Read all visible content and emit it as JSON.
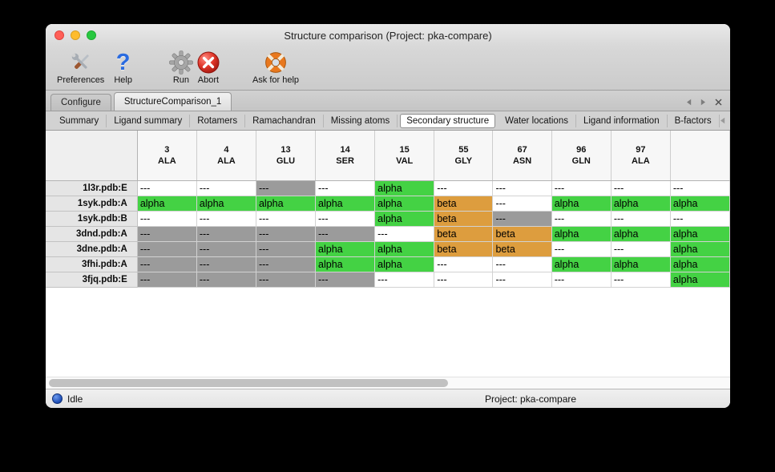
{
  "window": {
    "title": "Structure comparison (Project: pka-compare)"
  },
  "toolbar": {
    "items": [
      {
        "label": "Preferences",
        "icon": "tools-icon"
      },
      {
        "label": "Help",
        "icon": "help-question-icon",
        "glyph": "?"
      },
      {
        "label": "Run",
        "icon": "gear-icon"
      },
      {
        "label": "Abort",
        "icon": "abort-icon"
      },
      {
        "label": "Ask for help",
        "icon": "lifebuoy-icon"
      }
    ]
  },
  "document_tabs": {
    "items": [
      {
        "label": "Configure",
        "selected": false
      },
      {
        "label": "StructureComparison_1",
        "selected": true
      }
    ]
  },
  "view_tabs": {
    "items": [
      {
        "label": "Summary",
        "selected": false
      },
      {
        "label": "Ligand summary",
        "selected": false
      },
      {
        "label": "Rotamers",
        "selected": false
      },
      {
        "label": "Ramachandran",
        "selected": false
      },
      {
        "label": "Missing atoms",
        "selected": false
      },
      {
        "label": "Secondary structure",
        "selected": true
      },
      {
        "label": "Water locations",
        "selected": false
      },
      {
        "label": "Ligand information",
        "selected": false
      },
      {
        "label": "B-factors",
        "selected": false
      }
    ]
  },
  "table": {
    "columns": [
      {
        "number": "3",
        "residue": "ALA"
      },
      {
        "number": "4",
        "residue": "ALA"
      },
      {
        "number": "13",
        "residue": "GLU"
      },
      {
        "number": "14",
        "residue": "SER"
      },
      {
        "number": "15",
        "residue": "VAL"
      },
      {
        "number": "55",
        "residue": "GLY"
      },
      {
        "number": "67",
        "residue": "ASN"
      },
      {
        "number": "96",
        "residue": "GLN"
      },
      {
        "number": "97",
        "residue": "ALA"
      },
      {
        "number": "",
        "residue": ""
      }
    ],
    "rows": [
      {
        "label": "1l3r.pdb:E",
        "cells": [
          {
            "text": "---",
            "style": "white"
          },
          {
            "text": "---",
            "style": "white"
          },
          {
            "text": "---",
            "style": "gray"
          },
          {
            "text": "---",
            "style": "white"
          },
          {
            "text": "alpha",
            "style": "alpha"
          },
          {
            "text": "---",
            "style": "white"
          },
          {
            "text": "---",
            "style": "white"
          },
          {
            "text": "---",
            "style": "white"
          },
          {
            "text": "---",
            "style": "white"
          },
          {
            "text": "---",
            "style": "white"
          }
        ]
      },
      {
        "label": "1syk.pdb:A",
        "cells": [
          {
            "text": "alpha",
            "style": "alpha"
          },
          {
            "text": "alpha",
            "style": "alpha"
          },
          {
            "text": "alpha",
            "style": "alpha"
          },
          {
            "text": "alpha",
            "style": "alpha"
          },
          {
            "text": "alpha",
            "style": "alpha"
          },
          {
            "text": "beta",
            "style": "beta"
          },
          {
            "text": "---",
            "style": "white"
          },
          {
            "text": "alpha",
            "style": "alpha"
          },
          {
            "text": "alpha",
            "style": "alpha"
          },
          {
            "text": "alpha",
            "style": "alpha"
          }
        ]
      },
      {
        "label": "1syk.pdb:B",
        "cells": [
          {
            "text": "---",
            "style": "white"
          },
          {
            "text": "---",
            "style": "white"
          },
          {
            "text": "---",
            "style": "white"
          },
          {
            "text": "---",
            "style": "white"
          },
          {
            "text": "alpha",
            "style": "alpha"
          },
          {
            "text": "beta",
            "style": "beta"
          },
          {
            "text": "---",
            "style": "gray"
          },
          {
            "text": "---",
            "style": "white"
          },
          {
            "text": "---",
            "style": "white"
          },
          {
            "text": "---",
            "style": "white"
          }
        ]
      },
      {
        "label": "3dnd.pdb:A",
        "cells": [
          {
            "text": "---",
            "style": "gray"
          },
          {
            "text": "---",
            "style": "gray"
          },
          {
            "text": "---",
            "style": "gray"
          },
          {
            "text": "---",
            "style": "gray"
          },
          {
            "text": "---",
            "style": "white"
          },
          {
            "text": "beta",
            "style": "beta"
          },
          {
            "text": "beta",
            "style": "beta"
          },
          {
            "text": "alpha",
            "style": "alpha"
          },
          {
            "text": "alpha",
            "style": "alpha"
          },
          {
            "text": "alpha",
            "style": "alpha"
          }
        ]
      },
      {
        "label": "3dne.pdb:A",
        "cells": [
          {
            "text": "---",
            "style": "gray"
          },
          {
            "text": "---",
            "style": "gray"
          },
          {
            "text": "---",
            "style": "gray"
          },
          {
            "text": "alpha",
            "style": "alpha"
          },
          {
            "text": "alpha",
            "style": "alpha"
          },
          {
            "text": "beta",
            "style": "beta"
          },
          {
            "text": "beta",
            "style": "beta"
          },
          {
            "text": "---",
            "style": "white"
          },
          {
            "text": "---",
            "style": "white"
          },
          {
            "text": "alpha",
            "style": "alpha"
          }
        ]
      },
      {
        "label": "3fhi.pdb:A",
        "cells": [
          {
            "text": "---",
            "style": "gray"
          },
          {
            "text": "---",
            "style": "gray"
          },
          {
            "text": "---",
            "style": "gray"
          },
          {
            "text": "alpha",
            "style": "alpha"
          },
          {
            "text": "alpha",
            "style": "alpha"
          },
          {
            "text": "---",
            "style": "white"
          },
          {
            "text": "---",
            "style": "white"
          },
          {
            "text": "alpha",
            "style": "alpha"
          },
          {
            "text": "alpha",
            "style": "alpha"
          },
          {
            "text": "alpha",
            "style": "alpha"
          }
        ]
      },
      {
        "label": "3fjq.pdb:E",
        "cells": [
          {
            "text": "---",
            "style": "gray"
          },
          {
            "text": "---",
            "style": "gray"
          },
          {
            "text": "---",
            "style": "gray"
          },
          {
            "text": "---",
            "style": "gray"
          },
          {
            "text": "---",
            "style": "white"
          },
          {
            "text": "---",
            "style": "white"
          },
          {
            "text": "---",
            "style": "white"
          },
          {
            "text": "---",
            "style": "white"
          },
          {
            "text": "---",
            "style": "white"
          },
          {
            "text": "alpha",
            "style": "alpha"
          }
        ]
      }
    ]
  },
  "colors": {
    "alpha": "#44d244",
    "beta": "#dd9d3e",
    "gray": "#9b9b9b",
    "white": "#ffffff"
  },
  "statusbar": {
    "status": "Idle",
    "project": "Project: pka-compare"
  }
}
